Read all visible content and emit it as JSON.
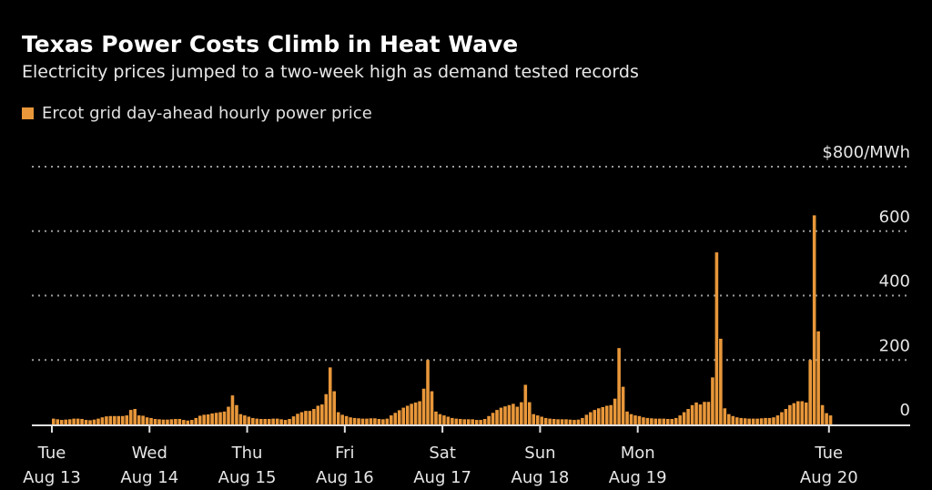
{
  "chart_data": {
    "type": "bar",
    "title": "Texas Power Costs Climb in Heat Wave",
    "subtitle": "Electricity prices jumped to a two-week high as demand tested records",
    "series": [
      {
        "name": "Ercot grid day-ahead hourly power price",
        "color": "#e8973a"
      }
    ],
    "ylabel": "$/MWh",
    "ylim": [
      0,
      800
    ],
    "yticks": [
      {
        "value": 800,
        "label": "$800/MWh"
      },
      {
        "value": 600,
        "label": "600"
      },
      {
        "value": 400,
        "label": "400"
      },
      {
        "value": 200,
        "label": "200"
      },
      {
        "value": 0,
        "label": "0"
      }
    ],
    "grid": true,
    "legend": "top-left",
    "xticks": [
      {
        "hour": 0,
        "day": "Tue",
        "date": "Aug 13"
      },
      {
        "hour": 24,
        "day": "Wed",
        "date": "Aug 14"
      },
      {
        "hour": 48,
        "day": "Thu",
        "date": "Aug 15"
      },
      {
        "hour": 72,
        "day": "Fri",
        "date": "Aug 16"
      },
      {
        "hour": 96,
        "day": "Sat",
        "date": "Aug 17"
      },
      {
        "hour": 120,
        "day": "Sun",
        "date": "Aug 18"
      },
      {
        "hour": 144,
        "day": "Mon",
        "date": "Aug 19"
      },
      {
        "hour": 191,
        "day": "Tue",
        "date": "Aug 20"
      }
    ],
    "values": [
      18,
      16,
      14,
      15,
      16,
      18,
      18,
      17,
      14,
      13,
      15,
      18,
      22,
      25,
      26,
      26,
      26,
      26,
      28,
      45,
      48,
      28,
      27,
      22,
      20,
      17,
      16,
      15,
      15,
      16,
      17,
      17,
      14,
      12,
      14,
      20,
      27,
      30,
      31,
      34,
      36,
      38,
      40,
      55,
      90,
      60,
      32,
      28,
      24,
      20,
      18,
      17,
      17,
      17,
      18,
      18,
      16,
      14,
      17,
      25,
      33,
      38,
      42,
      42,
      48,
      58,
      62,
      94,
      177,
      103,
      38,
      30,
      26,
      22,
      20,
      19,
      18,
      18,
      19,
      19,
      17,
      16,
      18,
      28,
      36,
      44,
      52,
      58,
      64,
      68,
      72,
      111,
      200,
      103,
      40,
      32,
      28,
      24,
      20,
      18,
      17,
      16,
      16,
      16,
      14,
      14,
      17,
      26,
      36,
      45,
      52,
      56,
      60,
      64,
      55,
      69,
      123,
      69,
      32,
      28,
      24,
      20,
      18,
      17,
      16,
      16,
      16,
      15,
      14,
      15,
      20,
      30,
      38,
      45,
      50,
      54,
      58,
      60,
      80,
      237,
      117,
      40,
      32,
      28,
      26,
      22,
      20,
      19,
      18,
      18,
      18,
      17,
      17,
      20,
      28,
      38,
      48,
      60,
      68,
      62,
      70,
      70,
      146,
      534,
      266,
      50,
      32,
      26,
      22,
      20,
      19,
      18,
      18,
      18,
      19,
      20,
      20,
      22,
      28,
      38,
      48,
      60,
      66,
      72,
      72,
      68,
      200,
      649,
      289,
      60,
      35,
      28
    ]
  }
}
